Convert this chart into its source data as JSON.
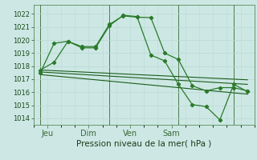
{
  "background_color": "#cde8e4",
  "grid_color": "#b8d8d4",
  "line_color_dark": "#1a5c1a",
  "line_color_main": "#2a7a2a",
  "title": "Pression niveau de la mer( hPa )",
  "x_ticks_labels": [
    "Jeu",
    "Dim",
    "Ven",
    "Sam"
  ],
  "x_ticks_pos": [
    0.5,
    3.5,
    6.5,
    9.5
  ],
  "ylim": [
    1013.5,
    1022.7
  ],
  "yticks": [
    1014,
    1015,
    1016,
    1017,
    1018,
    1019,
    1020,
    1021,
    1022
  ],
  "series1_x": [
    0,
    1,
    2,
    3,
    4,
    5,
    6,
    7,
    8,
    9,
    10,
    11,
    12,
    13,
    14,
    15
  ],
  "series1_y": [
    1017.7,
    1018.3,
    1019.9,
    1019.5,
    1019.5,
    1021.2,
    1021.85,
    1021.75,
    1021.72,
    1019.0,
    1018.5,
    1016.5,
    1016.1,
    1016.35,
    1016.35,
    1016.1
  ],
  "series2_x": [
    0,
    1,
    2,
    3,
    4,
    5,
    6,
    7,
    8,
    9,
    10,
    11,
    12,
    13,
    14,
    15
  ],
  "series2_y": [
    1017.5,
    1019.75,
    1019.9,
    1019.4,
    1019.4,
    1021.1,
    1021.9,
    1021.8,
    1018.85,
    1018.4,
    1016.6,
    1015.05,
    1014.9,
    1013.88,
    1016.6,
    1016.05
  ],
  "line1_x": [
    0,
    15
  ],
  "line1_y": [
    1017.7,
    1016.95
  ],
  "line2_x": [
    0,
    15
  ],
  "line2_y": [
    1017.55,
    1016.6
  ],
  "line3_x": [
    0,
    15
  ],
  "line3_y": [
    1017.35,
    1015.85
  ],
  "xlim": [
    -0.5,
    15.5
  ],
  "vlines_x": [
    0,
    5,
    10,
    14
  ],
  "xlabel_fontsize": 7.5,
  "ytick_fontsize": 6,
  "xtick_fontsize": 7
}
